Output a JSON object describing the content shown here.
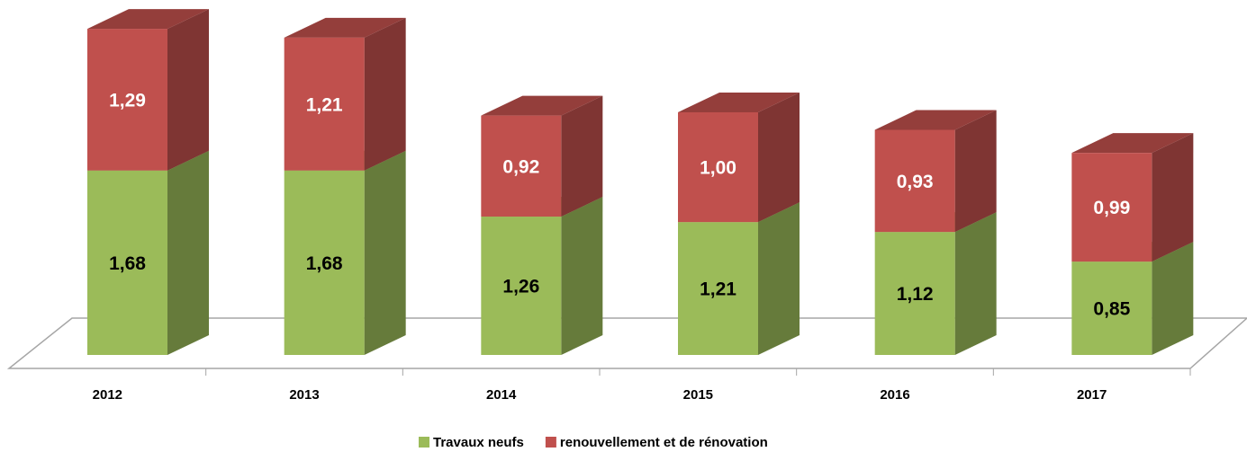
{
  "chart_data": {
    "type": "bar",
    "stacked": true,
    "categories": [
      "2012",
      "2013",
      "2014",
      "2015",
      "2016",
      "2017"
    ],
    "series": [
      {
        "name": "Travaux neufs",
        "color": "#9bbb59",
        "values": [
          1.68,
          1.68,
          1.26,
          1.21,
          1.12,
          0.85
        ],
        "value_labels": [
          "1,68",
          "1,68",
          "1,26",
          "1,21",
          "1,12",
          "0,85"
        ]
      },
      {
        "name": "renouvellement et de rénovation",
        "color": "#c0504d",
        "values": [
          1.29,
          1.21,
          0.92,
          1.0,
          0.93,
          0.99
        ],
        "value_labels": [
          "1,29",
          "1,21",
          "0,92",
          "1,00",
          "0,93",
          "0,99"
        ]
      }
    ]
  }
}
